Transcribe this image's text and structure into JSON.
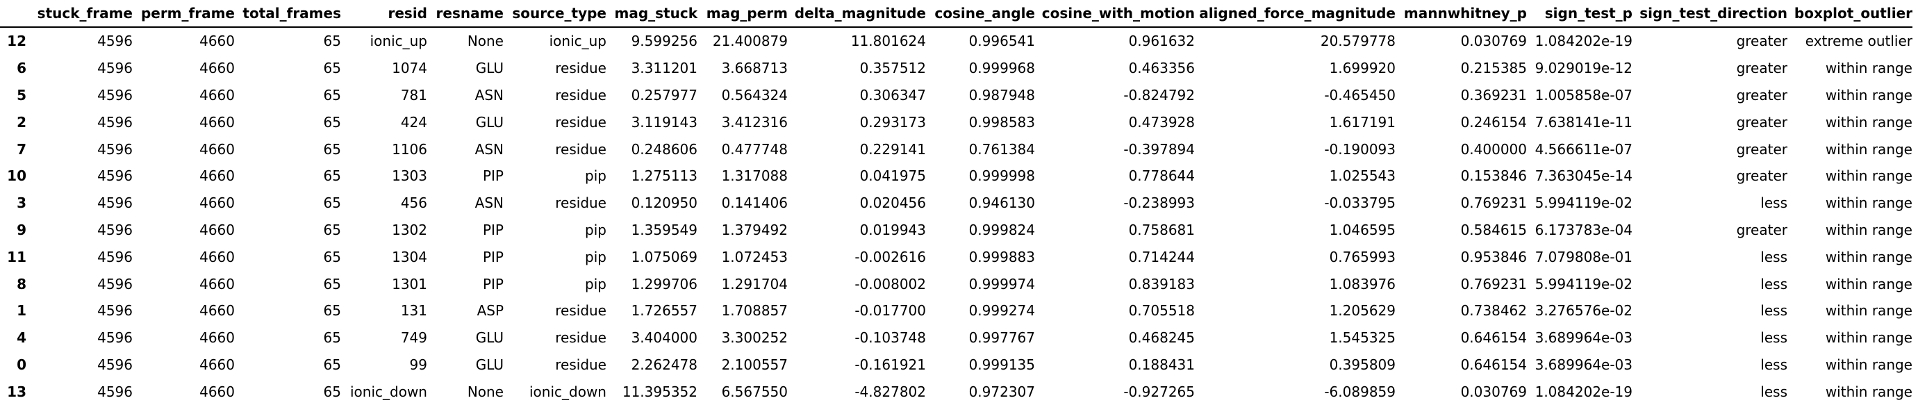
{
  "table": {
    "columns": [
      "stuck_frame",
      "perm_frame",
      "total_frames",
      "resid",
      "resname",
      "source_type",
      "mag_stuck",
      "mag_perm",
      "delta_magnitude",
      "cosine_angle",
      "cosine_with_motion",
      "aligned_force_magnitude",
      "mannwhitney_p",
      "sign_test_p",
      "sign_test_direction",
      "boxplot_outlier"
    ],
    "rows": [
      {
        "index": "12",
        "cells": [
          "4596",
          "4660",
          "65",
          "ionic_up",
          "None",
          "ionic_up",
          "9.599256",
          "21.400879",
          "11.801624",
          "0.996541",
          "0.961632",
          "20.579778",
          "0.030769",
          "1.084202e-19",
          "greater",
          "extreme outlier"
        ]
      },
      {
        "index": "6",
        "cells": [
          "4596",
          "4660",
          "65",
          "1074",
          "GLU",
          "residue",
          "3.311201",
          "3.668713",
          "0.357512",
          "0.999968",
          "0.463356",
          "1.699920",
          "0.215385",
          "9.029019e-12",
          "greater",
          "within range"
        ]
      },
      {
        "index": "5",
        "cells": [
          "4596",
          "4660",
          "65",
          "781",
          "ASN",
          "residue",
          "0.257977",
          "0.564324",
          "0.306347",
          "0.987948",
          "-0.824792",
          "-0.465450",
          "0.369231",
          "1.005858e-07",
          "greater",
          "within range"
        ]
      },
      {
        "index": "2",
        "cells": [
          "4596",
          "4660",
          "65",
          "424",
          "GLU",
          "residue",
          "3.119143",
          "3.412316",
          "0.293173",
          "0.998583",
          "0.473928",
          "1.617191",
          "0.246154",
          "7.638141e-11",
          "greater",
          "within range"
        ]
      },
      {
        "index": "7",
        "cells": [
          "4596",
          "4660",
          "65",
          "1106",
          "ASN",
          "residue",
          "0.248606",
          "0.477748",
          "0.229141",
          "0.761384",
          "-0.397894",
          "-0.190093",
          "0.400000",
          "4.566611e-07",
          "greater",
          "within range"
        ]
      },
      {
        "index": "10",
        "cells": [
          "4596",
          "4660",
          "65",
          "1303",
          "PIP",
          "pip",
          "1.275113",
          "1.317088",
          "0.041975",
          "0.999998",
          "0.778644",
          "1.025543",
          "0.153846",
          "7.363045e-14",
          "greater",
          "within range"
        ]
      },
      {
        "index": "3",
        "cells": [
          "4596",
          "4660",
          "65",
          "456",
          "ASN",
          "residue",
          "0.120950",
          "0.141406",
          "0.020456",
          "0.946130",
          "-0.238993",
          "-0.033795",
          "0.769231",
          "5.994119e-02",
          "less",
          "within range"
        ]
      },
      {
        "index": "9",
        "cells": [
          "4596",
          "4660",
          "65",
          "1302",
          "PIP",
          "pip",
          "1.359549",
          "1.379492",
          "0.019943",
          "0.999824",
          "0.758681",
          "1.046595",
          "0.584615",
          "6.173783e-04",
          "greater",
          "within range"
        ]
      },
      {
        "index": "11",
        "cells": [
          "4596",
          "4660",
          "65",
          "1304",
          "PIP",
          "pip",
          "1.075069",
          "1.072453",
          "-0.002616",
          "0.999883",
          "0.714244",
          "0.765993",
          "0.953846",
          "7.079808e-01",
          "less",
          "within range"
        ]
      },
      {
        "index": "8",
        "cells": [
          "4596",
          "4660",
          "65",
          "1301",
          "PIP",
          "pip",
          "1.299706",
          "1.291704",
          "-0.008002",
          "0.999974",
          "0.839183",
          "1.083976",
          "0.769231",
          "5.994119e-02",
          "less",
          "within range"
        ]
      },
      {
        "index": "1",
        "cells": [
          "4596",
          "4660",
          "65",
          "131",
          "ASP",
          "residue",
          "1.726557",
          "1.708857",
          "-0.017700",
          "0.999274",
          "0.705518",
          "1.205629",
          "0.738462",
          "3.276576e-02",
          "less",
          "within range"
        ]
      },
      {
        "index": "4",
        "cells": [
          "4596",
          "4660",
          "65",
          "749",
          "GLU",
          "residue",
          "3.404000",
          "3.300252",
          "-0.103748",
          "0.997767",
          "0.468245",
          "1.545325",
          "0.646154",
          "3.689964e-03",
          "less",
          "within range"
        ]
      },
      {
        "index": "0",
        "cells": [
          "4596",
          "4660",
          "65",
          "99",
          "GLU",
          "residue",
          "2.262478",
          "2.100557",
          "-0.161921",
          "0.999135",
          "0.188431",
          "0.395809",
          "0.646154",
          "3.689964e-03",
          "less",
          "within range"
        ]
      },
      {
        "index": "13",
        "cells": [
          "4596",
          "4660",
          "65",
          "ionic_down",
          "None",
          "ionic_down",
          "11.395352",
          "6.567550",
          "-4.827802",
          "0.972307",
          "-0.927265",
          "-6.089859",
          "0.030769",
          "1.084202e-19",
          "less",
          "within range"
        ]
      }
    ]
  }
}
